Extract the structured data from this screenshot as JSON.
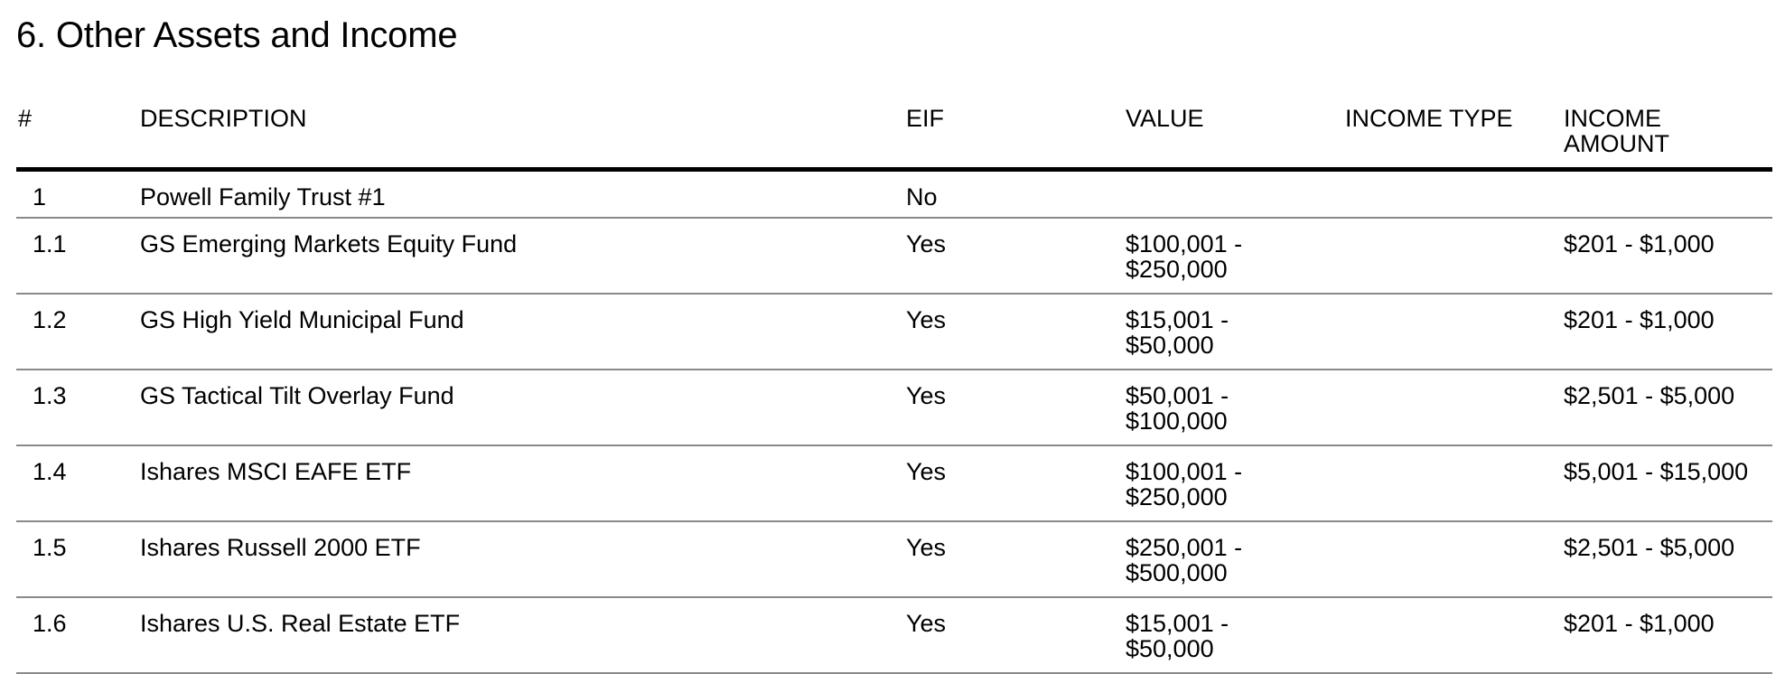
{
  "section": {
    "title": "6. Other Assets and Income"
  },
  "table": {
    "headers": {
      "num": "#",
      "description": "DESCRIPTION",
      "eif": "EIF",
      "value": "VALUE",
      "income_type": "INCOME TYPE",
      "income_amount_line1": "INCOME",
      "income_amount_line2": "AMOUNT"
    },
    "rows": [
      {
        "num": "1",
        "description": "Powell Family Trust #1",
        "eif": "No",
        "value_line1": "",
        "value_line2": "",
        "income_type": "",
        "income_amount": ""
      },
      {
        "num": "1.1",
        "description": "GS Emerging Markets Equity Fund",
        "eif": "Yes",
        "value_line1": "$100,001 -",
        "value_line2": "$250,000",
        "income_type": "",
        "income_amount": "$201 - $1,000"
      },
      {
        "num": "1.2",
        "description": "GS High Yield Municipal Fund",
        "eif": "Yes",
        "value_line1": "$15,001 -",
        "value_line2": "$50,000",
        "income_type": "",
        "income_amount": "$201 - $1,000"
      },
      {
        "num": "1.3",
        "description": "GS Tactical Tilt Overlay Fund",
        "eif": "Yes",
        "value_line1": "$50,001 -",
        "value_line2": "$100,000",
        "income_type": "",
        "income_amount": "$2,501 - $5,000"
      },
      {
        "num": "1.4",
        "description": "Ishares MSCI EAFE ETF",
        "eif": "Yes",
        "value_line1": "$100,001 -",
        "value_line2": "$250,000",
        "income_type": "",
        "income_amount": "$5,001 - $15,000"
      },
      {
        "num": "1.5",
        "description": "Ishares Russell 2000 ETF",
        "eif": "Yes",
        "value_line1": "$250,001 -",
        "value_line2": "$500,000",
        "income_type": "",
        "income_amount": "$2,501 - $5,000"
      },
      {
        "num": "1.6",
        "description": "Ishares U.S. Real Estate ETF",
        "eif": "Yes",
        "value_line1": "$15,001 -",
        "value_line2": "$50,000",
        "income_type": "",
        "income_amount": "$201 - $1,000"
      }
    ]
  }
}
